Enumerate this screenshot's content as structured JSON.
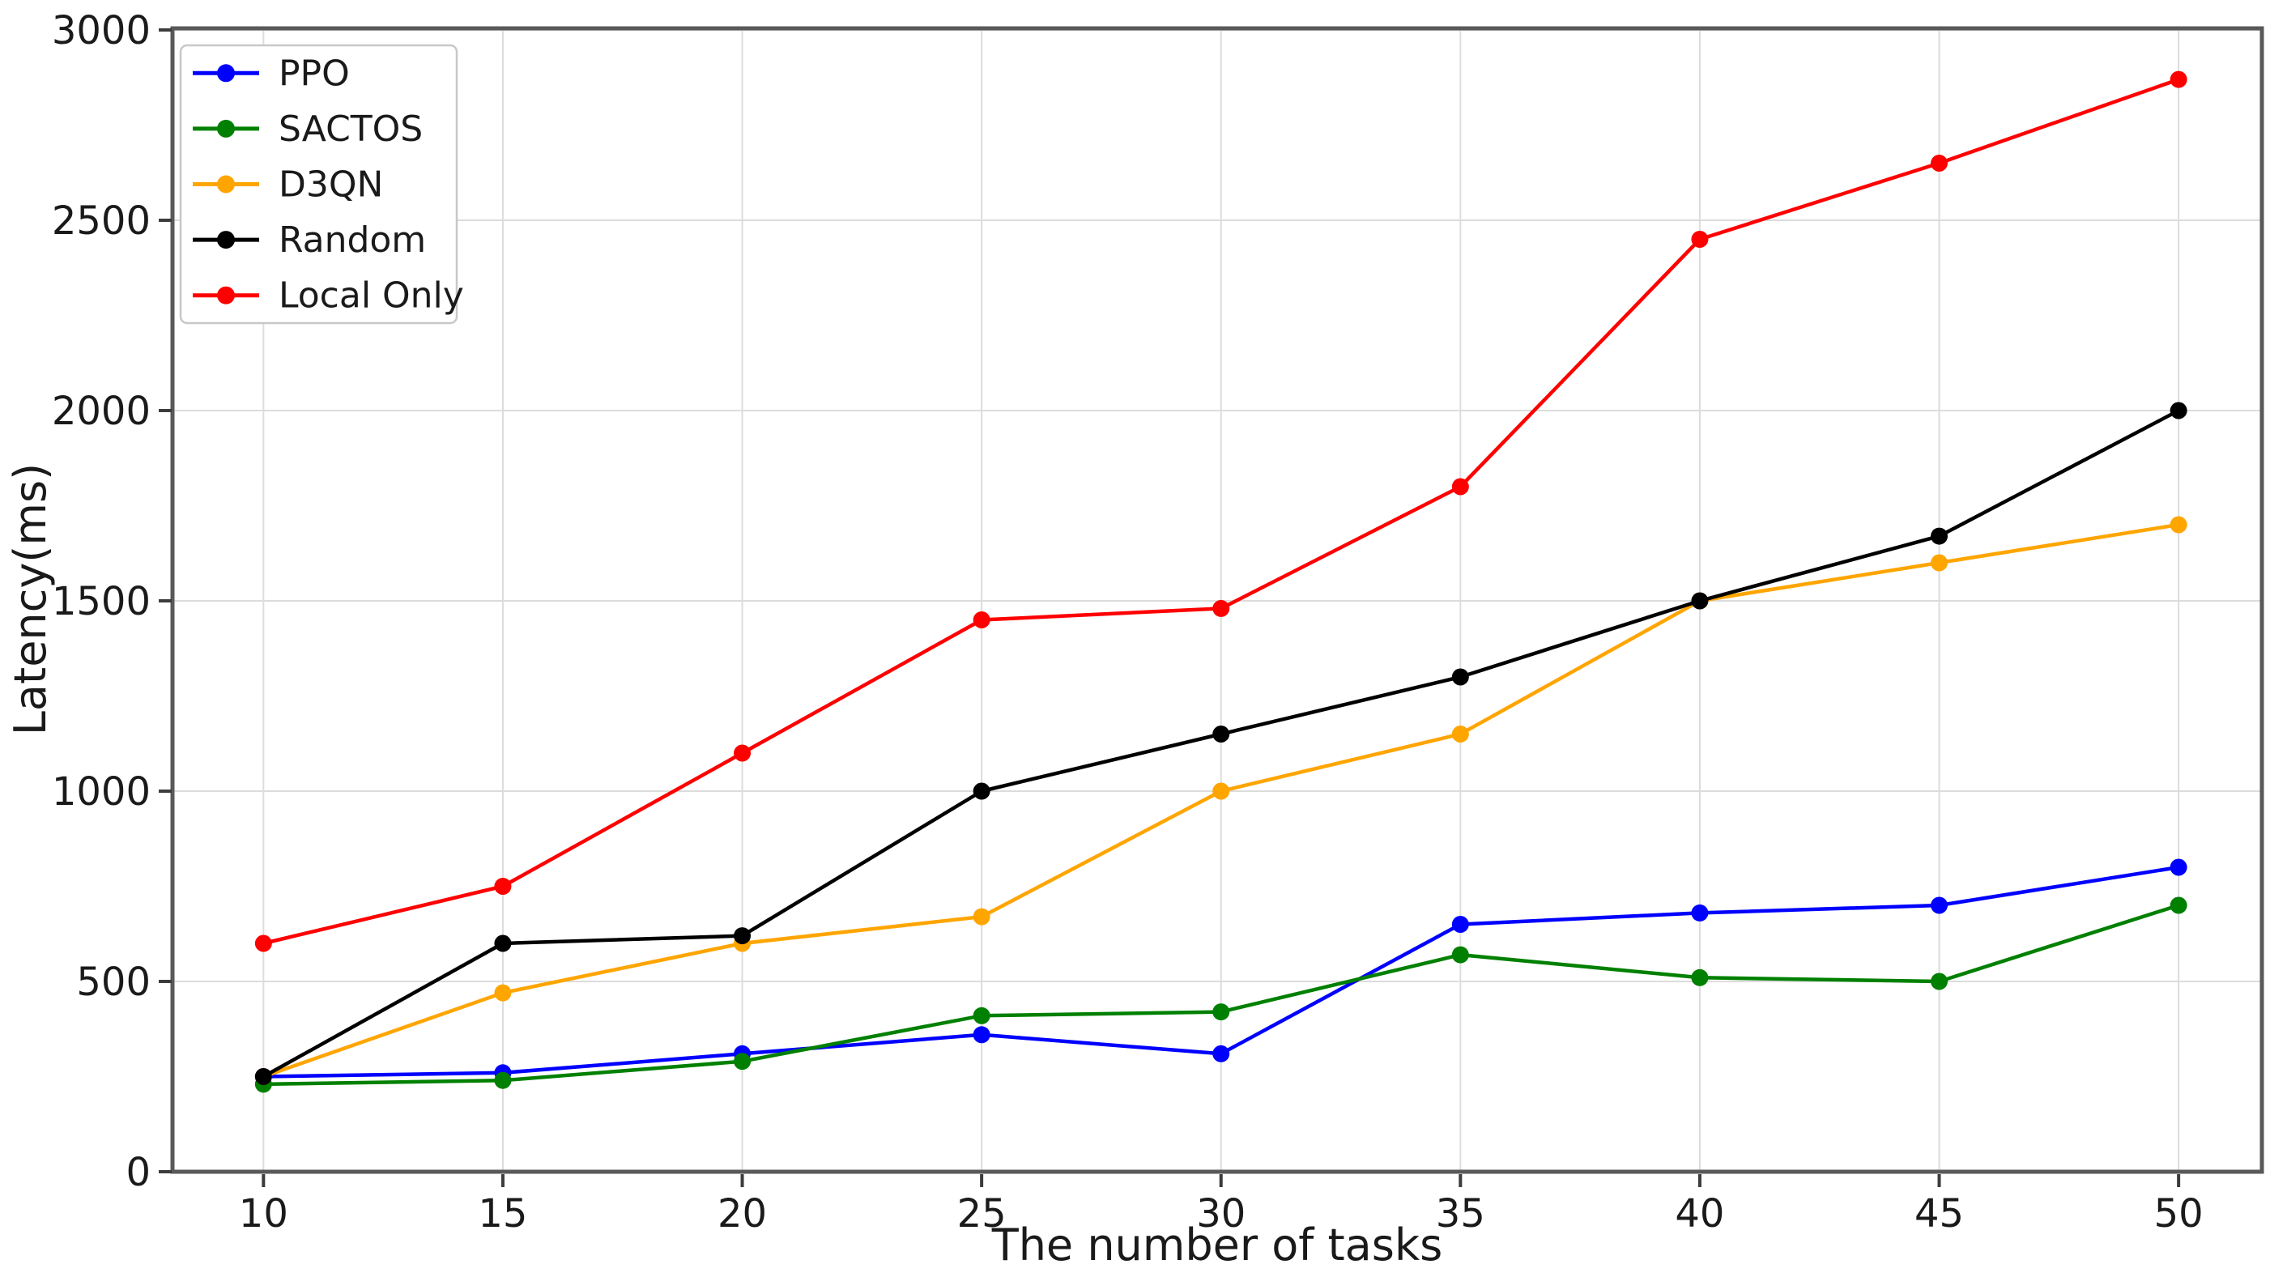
{
  "chart_data": {
    "type": "line",
    "title": "",
    "xlabel": "The number of tasks",
    "ylabel": "Latency(ms)",
    "x": [
      10,
      15,
      20,
      25,
      30,
      35,
      40,
      45,
      50
    ],
    "xticks": [
      10,
      15,
      20,
      25,
      30,
      35,
      40,
      45,
      50
    ],
    "yticks": [
      0,
      500,
      1000,
      1500,
      2000,
      2500,
      3000
    ],
    "xlim": [
      8.1,
      51.74
    ],
    "ylim": [
      0,
      3000
    ],
    "grid": true,
    "legend_position": "upper-left",
    "series": [
      {
        "name": "PPO",
        "color": "#0000ff",
        "values": [
          250,
          260,
          310,
          360,
          310,
          650,
          680,
          700,
          800
        ]
      },
      {
        "name": "SACTOS",
        "color": "#008000",
        "values": [
          230,
          240,
          290,
          410,
          420,
          570,
          510,
          500,
          700
        ]
      },
      {
        "name": "D3QN",
        "color": "#ffa500",
        "values": [
          250,
          470,
          600,
          670,
          1000,
          1150,
          1500,
          1600,
          1700
        ]
      },
      {
        "name": "Random",
        "color": "#000000",
        "values": [
          250,
          600,
          620,
          1000,
          1150,
          1300,
          1500,
          1670,
          2000
        ]
      },
      {
        "name": "Local Only",
        "color": "#ff0000",
        "values": [
          600,
          750,
          1100,
          1450,
          1480,
          1800,
          2450,
          2650,
          2870
        ]
      }
    ]
  }
}
